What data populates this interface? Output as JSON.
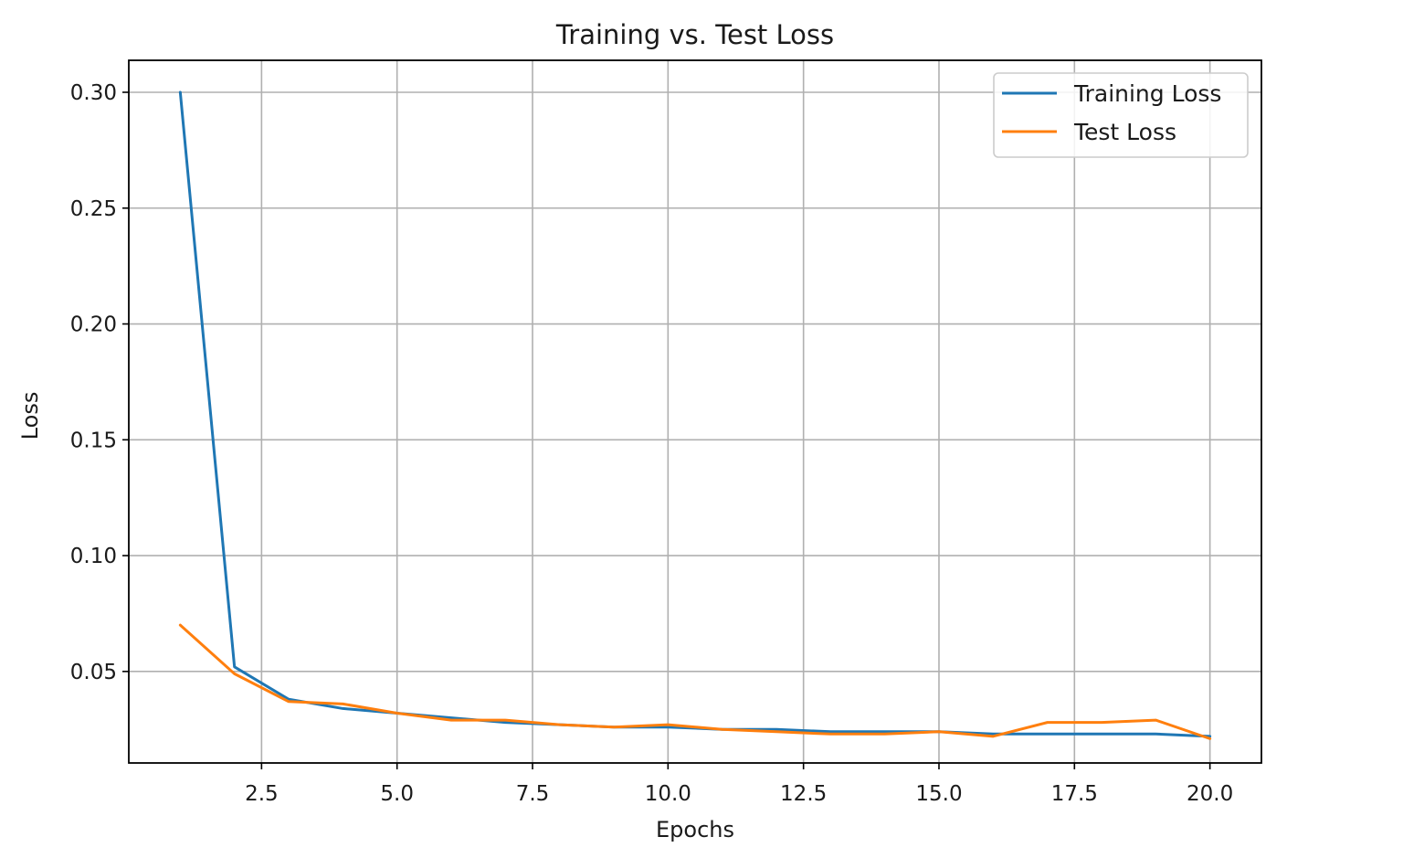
{
  "chart_data": {
    "type": "line",
    "title": "Training vs. Test Loss",
    "xlabel": "Epochs",
    "ylabel": "Loss",
    "xlim": [
      0.05,
      20.95
    ],
    "ylim": [
      0.0105,
      0.3138
    ],
    "xticks": [
      2.5,
      5.0,
      7.5,
      10.0,
      12.5,
      15.0,
      17.5,
      20.0
    ],
    "xtick_labels": [
      "2.5",
      "5.0",
      "7.5",
      "10.0",
      "12.5",
      "15.0",
      "17.5",
      "20.0"
    ],
    "yticks": [
      0.05,
      0.1,
      0.15,
      0.2,
      0.25,
      0.3
    ],
    "ytick_labels": [
      "0.05",
      "0.10",
      "0.15",
      "0.20",
      "0.25",
      "0.30"
    ],
    "grid": true,
    "legend_position": "top-right",
    "x": [
      1,
      2,
      3,
      4,
      5,
      6,
      7,
      8,
      9,
      10,
      11,
      12,
      13,
      14,
      15,
      16,
      17,
      18,
      19,
      20
    ],
    "series": [
      {
        "name": "Training Loss",
        "color": "#1f77b4",
        "values": [
          0.3,
          0.052,
          0.038,
          0.034,
          0.032,
          0.03,
          0.028,
          0.027,
          0.026,
          0.026,
          0.025,
          0.025,
          0.024,
          0.024,
          0.024,
          0.023,
          0.023,
          0.023,
          0.023,
          0.022
        ]
      },
      {
        "name": "Test Loss",
        "color": "#ff7f0e",
        "values": [
          0.07,
          0.049,
          0.037,
          0.036,
          0.032,
          0.029,
          0.029,
          0.027,
          0.026,
          0.027,
          0.025,
          0.024,
          0.023,
          0.023,
          0.024,
          0.022,
          0.028,
          0.028,
          0.029,
          0.021
        ]
      }
    ]
  }
}
